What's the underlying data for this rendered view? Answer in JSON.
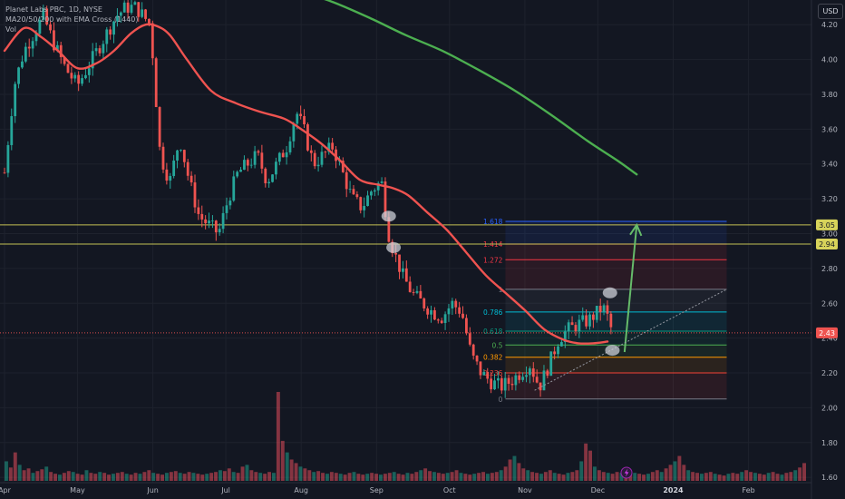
{
  "header": {
    "symbol_line": "Planet Labs PBC, 1D, NYSE",
    "indicator_line": "MA20/50/200 with EMA Cross (1440)",
    "volume_label": "Vol",
    "currency": "USD"
  },
  "chart_data": {
    "type": "candlestick",
    "symbol": "Planet Labs PBC",
    "interval": "1D",
    "exchange": "NYSE",
    "y_axis": {
      "ticks": [
        4.2,
        4.0,
        3.8,
        3.6,
        3.4,
        3.2,
        3.0,
        2.8,
        2.6,
        2.4,
        2.2,
        2.0,
        1.8,
        1.6
      ],
      "tick_labels": [
        "4.20",
        "4.00",
        "3.80",
        "3.60",
        "3.40",
        "3.20",
        "3.00",
        "2.80",
        "2.60",
        "2.40",
        "2.20",
        "2.00",
        "1.80",
        "1.60"
      ],
      "range": [
        1.58,
        4.3
      ]
    },
    "x_axis": {
      "range_days": [
        0,
        330
      ],
      "ticks": [
        {
          "label": "Apr",
          "day": 0,
          "bold": false
        },
        {
          "label": "May",
          "day": 30,
          "bold": false
        },
        {
          "label": "Jun",
          "day": 61,
          "bold": false
        },
        {
          "label": "Jul",
          "day": 91,
          "bold": false
        },
        {
          "label": "Aug",
          "day": 122,
          "bold": false
        },
        {
          "label": "Sep",
          "day": 153,
          "bold": false
        },
        {
          "label": "Oct",
          "day": 183,
          "bold": false
        },
        {
          "label": "Nov",
          "day": 214,
          "bold": false
        },
        {
          "label": "Dec",
          "day": 244,
          "bold": false
        },
        {
          "label": "2024",
          "day": 275,
          "bold": true
        },
        {
          "label": "Feb",
          "day": 306,
          "bold": false
        }
      ]
    },
    "price_path": [
      [
        0,
        3.35
      ],
      [
        4,
        3.85
      ],
      [
        8,
        4.05
      ],
      [
        12,
        4.15
      ],
      [
        16,
        4.25
      ],
      [
        20,
        4.1
      ],
      [
        25,
        3.95
      ],
      [
        30,
        3.85
      ],
      [
        34,
        3.95
      ],
      [
        38,
        4.05
      ],
      [
        42,
        4.15
      ],
      [
        46,
        4.25
      ],
      [
        50,
        4.3
      ],
      [
        54,
        4.3
      ],
      [
        60,
        4.2
      ],
      [
        64,
        3.45
      ],
      [
        68,
        3.3
      ],
      [
        72,
        3.55
      ],
      [
        76,
        3.3
      ],
      [
        80,
        3.1
      ],
      [
        84,
        3.05
      ],
      [
        88,
        3.0
      ],
      [
        92,
        3.2
      ],
      [
        96,
        3.35
      ],
      [
        100,
        3.4
      ],
      [
        104,
        3.45
      ],
      [
        108,
        3.3
      ],
      [
        112,
        3.4
      ],
      [
        116,
        3.5
      ],
      [
        120,
        3.7
      ],
      [
        123,
        3.6
      ],
      [
        127,
        3.4
      ],
      [
        131,
        3.45
      ],
      [
        135,
        3.5
      ],
      [
        139,
        3.35
      ],
      [
        143,
        3.2
      ],
      [
        147,
        3.15
      ],
      [
        151,
        3.25
      ],
      [
        155,
        3.3
      ],
      [
        158,
        3.0
      ],
      [
        160,
        2.9
      ],
      [
        164,
        2.75
      ],
      [
        168,
        2.65
      ],
      [
        172,
        2.6
      ],
      [
        176,
        2.55
      ],
      [
        180,
        2.52
      ],
      [
        184,
        2.6
      ],
      [
        188,
        2.55
      ],
      [
        192,
        2.3
      ],
      [
        196,
        2.2
      ],
      [
        200,
        2.15
      ],
      [
        204,
        2.12
      ],
      [
        208,
        2.15
      ],
      [
        212,
        2.2
      ],
      [
        216,
        2.25
      ],
      [
        220,
        2.12
      ],
      [
        224,
        2.25
      ],
      [
        228,
        2.4
      ],
      [
        232,
        2.45
      ],
      [
        236,
        2.48
      ],
      [
        240,
        2.5
      ],
      [
        244,
        2.55
      ],
      [
        246,
        2.58
      ],
      [
        248,
        2.52
      ],
      [
        250,
        2.43
      ]
    ],
    "series": [
      {
        "name": "MA20",
        "color": "#ef5350",
        "points": [
          [
            0,
            4.05
          ],
          [
            8,
            4.18
          ],
          [
            15,
            4.13
          ],
          [
            22,
            4.05
          ],
          [
            30,
            3.95
          ],
          [
            38,
            3.98
          ],
          [
            45,
            4.05
          ],
          [
            52,
            4.15
          ],
          [
            58,
            4.2
          ],
          [
            63,
            4.19
          ],
          [
            68,
            4.14
          ],
          [
            75,
            4.0
          ],
          [
            85,
            3.82
          ],
          [
            95,
            3.75
          ],
          [
            105,
            3.7
          ],
          [
            115,
            3.66
          ],
          [
            122,
            3.6
          ],
          [
            130,
            3.52
          ],
          [
            138,
            3.42
          ],
          [
            146,
            3.31
          ],
          [
            154,
            3.28
          ],
          [
            160,
            3.26
          ],
          [
            166,
            3.22
          ],
          [
            174,
            3.12
          ],
          [
            182,
            3.02
          ],
          [
            190,
            2.89
          ],
          [
            198,
            2.76
          ],
          [
            206,
            2.66
          ],
          [
            214,
            2.56
          ],
          [
            222,
            2.45
          ],
          [
            230,
            2.39
          ],
          [
            236,
            2.37
          ],
          [
            242,
            2.37
          ],
          [
            248,
            2.38
          ]
        ]
      },
      {
        "name": "MA200",
        "color": "#4caf50",
        "points": [
          [
            120,
            4.4
          ],
          [
            135,
            4.33
          ],
          [
            150,
            4.24
          ],
          [
            165,
            4.14
          ],
          [
            180,
            4.05
          ],
          [
            195,
            3.94
          ],
          [
            210,
            3.82
          ],
          [
            225,
            3.68
          ],
          [
            240,
            3.53
          ],
          [
            252,
            3.42
          ],
          [
            260,
            3.34
          ]
        ]
      }
    ],
    "horizontal_lines": [
      {
        "value": 3.05,
        "label": "3.05",
        "color": "#d7d35a"
      },
      {
        "value": 2.94,
        "label": "2.94",
        "color": "#d7d35a"
      },
      {
        "value": 2.43,
        "label": "2.43",
        "color": "#ef5350"
      }
    ],
    "fibonacci": {
      "start_day": 206,
      "end_day": 297,
      "levels": [
        {
          "ratio": "0",
          "value": 2.05,
          "color": "#787b86"
        },
        {
          "ratio": "0.236",
          "value": 2.2,
          "color": "#f44336"
        },
        {
          "ratio": "0.382",
          "value": 2.29,
          "color": "#ff9800"
        },
        {
          "ratio": "0.5",
          "value": 2.36,
          "color": "#4caf50"
        },
        {
          "ratio": "0.618",
          "value": 2.44,
          "color": "#089981"
        },
        {
          "ratio": "0.786",
          "value": 2.55,
          "color": "#00bcd4"
        },
        {
          "ratio": "1",
          "value": 2.68,
          "color": "#787b86"
        },
        {
          "ratio": "1.272",
          "value": 2.85,
          "color": "#f23645"
        },
        {
          "ratio": "1.414",
          "value": 2.94,
          "color": "#f23645"
        },
        {
          "ratio": "1.618",
          "value": 3.07,
          "color": "#2962ff"
        }
      ]
    },
    "volume": {
      "values": [
        0.22,
        0.15,
        0.32,
        0.18,
        0.12,
        0.14,
        0.09,
        0.11,
        0.13,
        0.16,
        0.1,
        0.08,
        0.07,
        0.09,
        0.11,
        0.1,
        0.08,
        0.07,
        0.12,
        0.09,
        0.08,
        0.1,
        0.09,
        0.07,
        0.08,
        0.09,
        0.1,
        0.08,
        0.07,
        0.09,
        0.08,
        0.1,
        0.12,
        0.09,
        0.08,
        0.07,
        0.09,
        0.1,
        0.11,
        0.09,
        0.08,
        0.1,
        0.09,
        0.08,
        0.07,
        0.08,
        0.09,
        0.1,
        0.12,
        0.11,
        0.14,
        0.1,
        0.09,
        0.16,
        0.18,
        0.12,
        0.1,
        0.09,
        0.08,
        0.1,
        0.09,
        1.0,
        0.45,
        0.32,
        0.24,
        0.2,
        0.16,
        0.14,
        0.12,
        0.1,
        0.11,
        0.09,
        0.08,
        0.1,
        0.09,
        0.08,
        0.07,
        0.09,
        0.1,
        0.08,
        0.07,
        0.08,
        0.09,
        0.08,
        0.07,
        0.08,
        0.09,
        0.1,
        0.08,
        0.07,
        0.09,
        0.08,
        0.1,
        0.12,
        0.14,
        0.11,
        0.1,
        0.09,
        0.08,
        0.09,
        0.1,
        0.12,
        0.09,
        0.08,
        0.07,
        0.08,
        0.09,
        0.1,
        0.08,
        0.09,
        0.1,
        0.12,
        0.16,
        0.24,
        0.28,
        0.2,
        0.14,
        0.12,
        0.1,
        0.09,
        0.08,
        0.1,
        0.12,
        0.09,
        0.08,
        0.07,
        0.09,
        0.1,
        0.12,
        0.22,
        0.42,
        0.34,
        0.16,
        0.12,
        0.1,
        0.09,
        0.08,
        0.1,
        0.09,
        0.08,
        0.07,
        0.09,
        0.08,
        0.07,
        0.08,
        0.1,
        0.12,
        0.1,
        0.14,
        0.18,
        0.22,
        0.28,
        0.18,
        0.12,
        0.1,
        0.09,
        0.08,
        0.09,
        0.1,
        0.08,
        0.07,
        0.06,
        0.08,
        0.09,
        0.08,
        0.1,
        0.12,
        0.1,
        0.09,
        0.08,
        0.07,
        0.09,
        0.1,
        0.08,
        0.07,
        0.09,
        0.1,
        0.12,
        0.15,
        0.2
      ]
    },
    "annotations": [
      {
        "type": "arrow",
        "from": [
          255,
          2.32
        ],
        "to": [
          260,
          3.05
        ],
        "color": "#66bb6a"
      },
      {
        "type": "dotted-trendline",
        "from": [
          218,
          2.1
        ],
        "to": [
          297,
          2.68
        ],
        "color": "#9598a1"
      },
      {
        "type": "highlight",
        "day": 158,
        "value": 3.1
      },
      {
        "type": "highlight",
        "day": 160,
        "value": 2.92
      },
      {
        "type": "highlight",
        "day": 249,
        "value": 2.66
      },
      {
        "type": "highlight",
        "day": 250,
        "value": 2.33
      }
    ]
  }
}
